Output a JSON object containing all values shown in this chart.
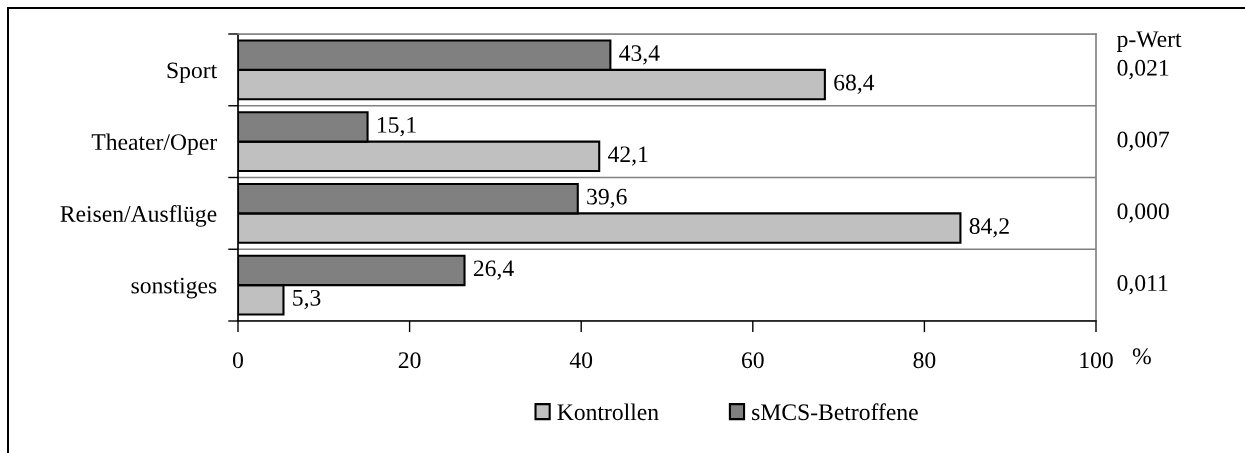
{
  "chart_data": {
    "type": "bar",
    "orientation": "horizontal",
    "categories": [
      "Sport",
      "Theater/Oper",
      "Reisen/Ausflüge",
      "sonstiges"
    ],
    "series": [
      {
        "name": "Kontrollen",
        "color": "#c0c0c0",
        "values": [
          68.4,
          42.1,
          84.2,
          5.3
        ],
        "value_labels": [
          "68,4",
          "42,1",
          "84,2",
          "5,3"
        ]
      },
      {
        "name": "sMCS-Betroffene",
        "color": "#808080",
        "values": [
          43.4,
          15.1,
          39.6,
          26.4
        ],
        "value_labels": [
          "43,4",
          "15,1",
          "39,6",
          "26,4"
        ]
      }
    ],
    "xlabel": "%",
    "xlim": [
      0,
      100
    ],
    "xticks": [
      0,
      20,
      40,
      60,
      80,
      100
    ],
    "annotations": [
      "p-Wert",
      "0,021",
      "0,007",
      "0,000",
      "0,011"
    ],
    "grid": "y",
    "legend": "bottom"
  }
}
